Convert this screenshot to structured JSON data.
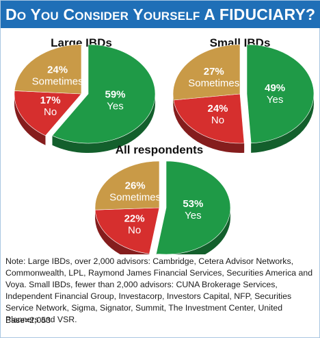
{
  "banner": {
    "title": "Do You Consider Yourself a FIDUCIARY?"
  },
  "colors": {
    "yes": "#1f9a47",
    "no": "#d62f2e",
    "sometimes": "#c99a47",
    "banner": "#1f6fb7"
  },
  "chart_data": [
    {
      "type": "pie",
      "title": "Large IBDs",
      "slices": [
        {
          "label": "Yes",
          "value": 59
        },
        {
          "label": "No",
          "value": 17
        },
        {
          "label": "Sometimes",
          "value": 24
        }
      ]
    },
    {
      "type": "pie",
      "title": "Small IBDs",
      "slices": [
        {
          "label": "Yes",
          "value": 49
        },
        {
          "label": "No",
          "value": 24
        },
        {
          "label": "Sometimes",
          "value": 27
        }
      ]
    },
    {
      "type": "pie",
      "title": "All respondents",
      "slices": [
        {
          "label": "Yes",
          "value": 53
        },
        {
          "label": "No",
          "value": 22
        },
        {
          "label": "Sometimes",
          "value": 26
        }
      ]
    }
  ],
  "note": "Note: Large IBDs, over 2,000 advisors: Cambridge, Cetera Advisor Networks, Commonwealth, LPL, Raymond James Financial Services, Securities America and Voya. Small IBDs, fewer than 2,000 advisors: CUNA Brokerage Services, Independent Financial Group, Investacorp, Investors Capital, NFP, Securities Service Network, Sigma, Signator, Summit, The Investment Center, United Planners and VSR.",
  "base": "Base=2,053"
}
